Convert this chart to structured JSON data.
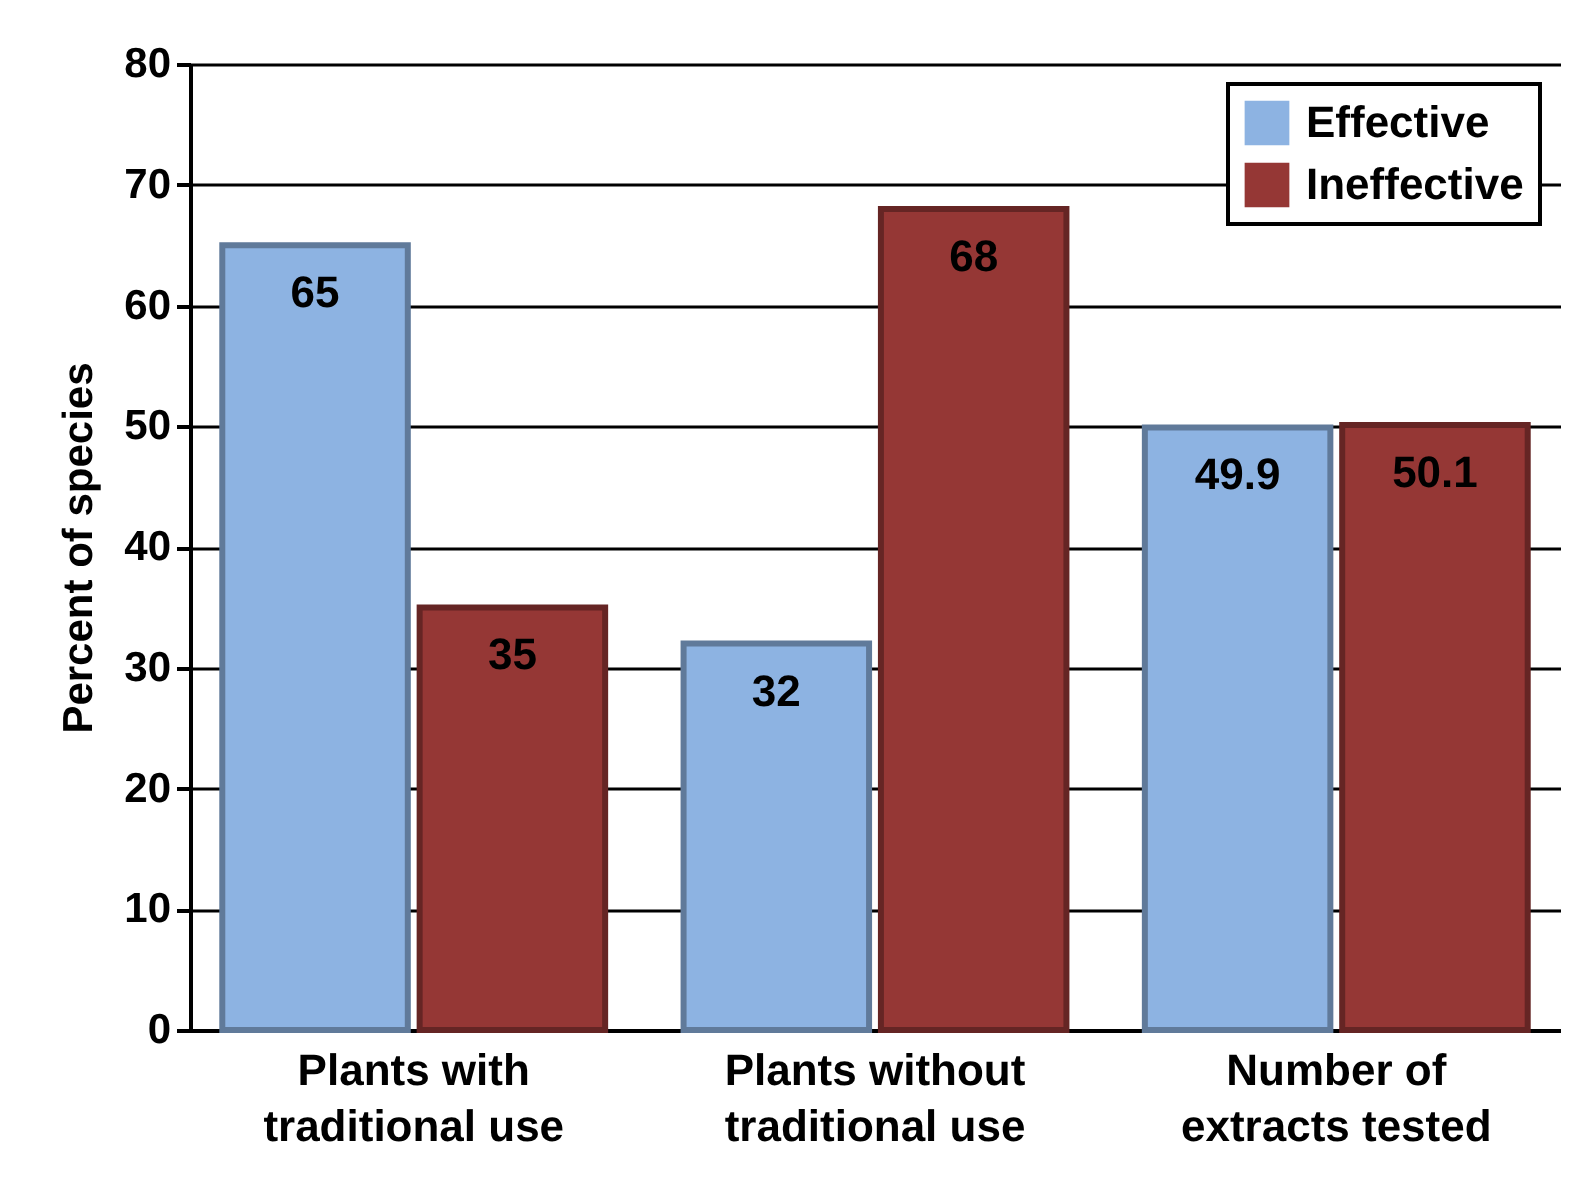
{
  "chart_data": {
    "type": "bar",
    "ylabel": "Percent of species",
    "categories": [
      "Plants with traditional use",
      "Plants without traditional use",
      "Number of extracts tested"
    ],
    "series": [
      {
        "name": "Effective",
        "color": "#8db3e2",
        "values": [
          65,
          32,
          49.9
        ]
      },
      {
        "name": "Ineffective",
        "color": "#953735",
        "values": [
          35,
          68,
          50.1
        ]
      }
    ],
    "ylim": [
      0,
      80
    ],
    "yticks": [
      0,
      10,
      20,
      30,
      40,
      50,
      60,
      70,
      80
    ],
    "grid": "y",
    "legend": "top right",
    "data_labels": true
  }
}
